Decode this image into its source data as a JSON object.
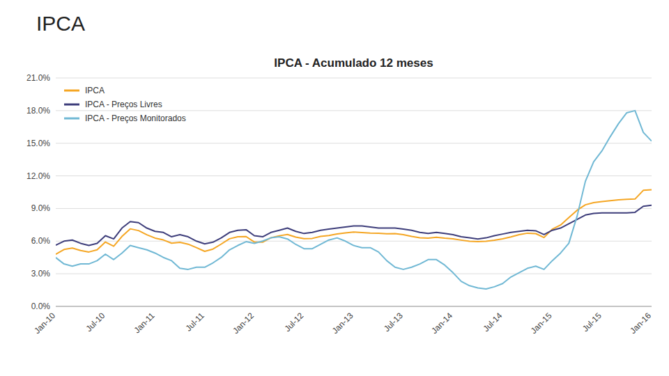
{
  "chart_data": {
    "type": "line",
    "title": "IPCA - Acumulado 12 meses",
    "subtitle": "IPCA",
    "categories": [
      "Jan-10",
      null,
      null,
      null,
      null,
      null,
      "Jul-10",
      null,
      null,
      null,
      null,
      null,
      "Jan-11",
      null,
      null,
      null,
      null,
      null,
      "Jul-11",
      null,
      null,
      null,
      null,
      null,
      "Jan-12",
      null,
      null,
      null,
      null,
      null,
      "Jul-12",
      null,
      null,
      null,
      null,
      null,
      "Jan-13",
      null,
      null,
      null,
      null,
      null,
      "Jul-13",
      null,
      null,
      null,
      null,
      null,
      "Jan-14",
      null,
      null,
      null,
      null,
      null,
      "Jul-14",
      null,
      null,
      null,
      null,
      null,
      "Jan-15",
      null,
      null,
      null,
      null,
      null,
      "Jul-15",
      null,
      null,
      null,
      null,
      null,
      "Jan-16"
    ],
    "series": [
      {
        "name": "IPCA",
        "color": "#F5A623",
        "values": [
          0.0479,
          0.0523,
          0.0536,
          0.0514,
          0.05,
          0.052,
          0.0592,
          0.0553,
          0.0643,
          0.0713,
          0.0697,
          0.0659,
          0.0628,
          0.0611,
          0.0581,
          0.0589,
          0.0572,
          0.054,
          0.0506,
          0.0527,
          0.0573,
          0.0622,
          0.064,
          0.0642,
          0.0591,
          0.059,
          0.0631,
          0.0649,
          0.0661,
          0.0637,
          0.0622,
          0.0625,
          0.0644,
          0.0651,
          0.0666,
          0.0675,
          0.0683,
          0.0679,
          0.0674,
          0.0672,
          0.0668,
          0.0669,
          0.066,
          0.0643,
          0.063,
          0.0627,
          0.0635,
          0.0627,
          0.0621,
          0.0609,
          0.0598,
          0.0595,
          0.0598,
          0.0608,
          0.0621,
          0.0639,
          0.0659,
          0.0673,
          0.0669,
          0.0633,
          0.071,
          0.0748,
          0.0817,
          0.0884,
          0.0934,
          0.0954,
          0.0964,
          0.0971,
          0.0979,
          0.0985,
          0.0987,
          0.1067,
          0.1072
        ]
      },
      {
        "name": "IPCA - Preços Livres",
        "color": "#3D3D7A",
        "values": [
          0.0563,
          0.06,
          0.061,
          0.058,
          0.056,
          0.058,
          0.065,
          0.062,
          0.072,
          0.078,
          0.077,
          0.072,
          0.069,
          0.068,
          0.064,
          0.066,
          0.064,
          0.06,
          0.0575,
          0.059,
          0.063,
          0.068,
          0.07,
          0.0705,
          0.065,
          0.064,
          0.068,
          0.07,
          0.072,
          0.069,
          0.067,
          0.068,
          0.07,
          0.071,
          0.072,
          0.073,
          0.074,
          0.074,
          0.073,
          0.072,
          0.072,
          0.072,
          0.071,
          0.07,
          0.068,
          0.067,
          0.068,
          0.067,
          0.066,
          0.064,
          0.063,
          0.062,
          0.063,
          0.065,
          0.0665,
          0.068,
          0.069,
          0.07,
          0.0695,
          0.066,
          0.07,
          0.072,
          0.076,
          0.08,
          0.084,
          0.0855,
          0.086,
          0.086,
          0.086,
          0.086,
          0.0865,
          0.092,
          0.093
        ]
      },
      {
        "name": "IPCA - Preços Monitorados",
        "color": "#70B8D4",
        "values": [
          0.0449,
          0.039,
          0.037,
          0.039,
          0.039,
          0.042,
          0.048,
          0.043,
          0.049,
          0.056,
          0.054,
          0.052,
          0.049,
          0.045,
          0.042,
          0.035,
          0.034,
          0.036,
          0.036,
          0.04,
          0.045,
          0.052,
          0.056,
          0.0595,
          0.058,
          0.06,
          0.063,
          0.064,
          0.062,
          0.057,
          0.053,
          0.053,
          0.057,
          0.061,
          0.063,
          0.06,
          0.056,
          0.054,
          0.054,
          0.05,
          0.042,
          0.036,
          0.034,
          0.036,
          0.039,
          0.043,
          0.043,
          0.038,
          0.031,
          0.023,
          0.019,
          0.017,
          0.016,
          0.018,
          0.021,
          0.027,
          0.031,
          0.035,
          0.037,
          0.034,
          0.042,
          0.049,
          0.058,
          0.083,
          0.115,
          0.133,
          0.143,
          0.156,
          0.168,
          0.178,
          0.18,
          0.16,
          0.152
        ]
      }
    ],
    "ylim": [
      0.0,
      0.21
    ],
    "yticks": [
      {
        "value": 0.0,
        "label": "0.0%"
      },
      {
        "value": 0.03,
        "label": "3.0%"
      },
      {
        "value": 0.06,
        "label": "6.0%"
      },
      {
        "value": 0.09,
        "label": "9.0%"
      },
      {
        "value": 0.12,
        "label": "12.0%"
      },
      {
        "value": 0.15,
        "label": "15.0%"
      },
      {
        "value": 0.18,
        "label": "18.0%"
      },
      {
        "value": 0.21,
        "label": "21.0%"
      }
    ],
    "grid": true,
    "legend": "upper left"
  }
}
